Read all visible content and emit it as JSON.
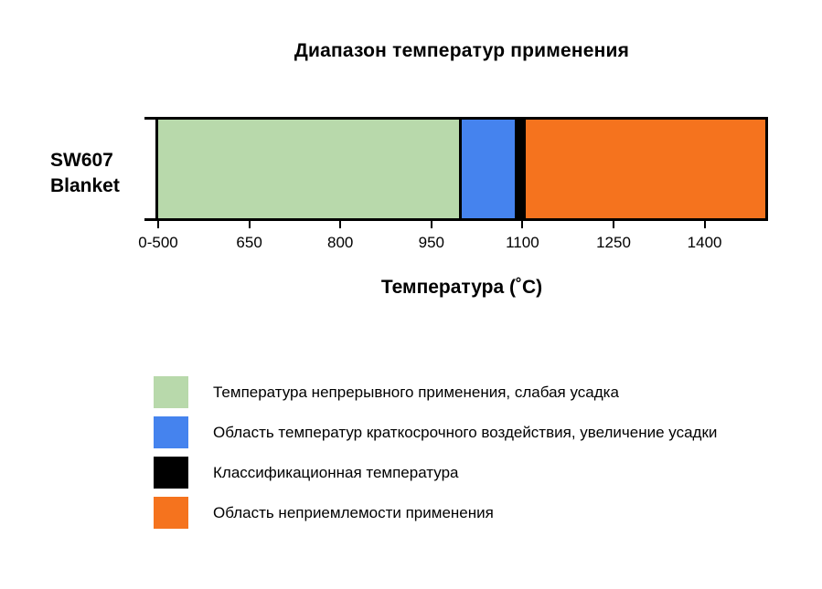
{
  "page": {
    "background": "#ffffff"
  },
  "chart_data": {
    "type": "bar",
    "orientation": "horizontal",
    "title": "Диапазон температур применения",
    "category_lines": [
      "SW607",
      "Blanket"
    ],
    "xlabel": "Температура (˚C)",
    "x_axis": {
      "min": 500,
      "max": 1500,
      "note_left_edge_label": "0-500"
    },
    "grid": false,
    "classification_temperature_c": 1100,
    "ticks": [
      {
        "label": "0-500",
        "value": 500
      },
      {
        "label": "650",
        "value": 650
      },
      {
        "label": "800",
        "value": 800
      },
      {
        "label": "950",
        "value": 950
      },
      {
        "label": "1100",
        "value": 1100
      },
      {
        "label": "1250",
        "value": 1250
      },
      {
        "label": "1400",
        "value": 1400
      }
    ],
    "segments": [
      {
        "name": "continuous-use-range",
        "from": 500,
        "to": 1000,
        "color": "#b8d9ab",
        "divider_after": true
      },
      {
        "name": "short-term-exposure-range",
        "from": 1000,
        "to": 1088,
        "color": "#4583ee",
        "divider_after": false
      },
      {
        "name": "classification-temperature-band",
        "from": 1088,
        "to": 1106,
        "color": "#000000",
        "divider_after": false
      },
      {
        "name": "unacceptable-range",
        "from": 1106,
        "to": 1500,
        "color": "#f5731e",
        "divider_after": false
      }
    ],
    "legend": {
      "position": "bottom-left",
      "items": [
        {
          "color": "#b8d9ab",
          "label": "Температура непрерывного применения, слабая усадка"
        },
        {
          "color": "#4583ee",
          "label": "Область температур краткосрочного воздействия, увеличение усадки"
        },
        {
          "color": "#000000",
          "label": "Классификационная температура"
        },
        {
          "color": "#f5731e",
          "label": "Область неприемлемости применения"
        }
      ]
    }
  }
}
